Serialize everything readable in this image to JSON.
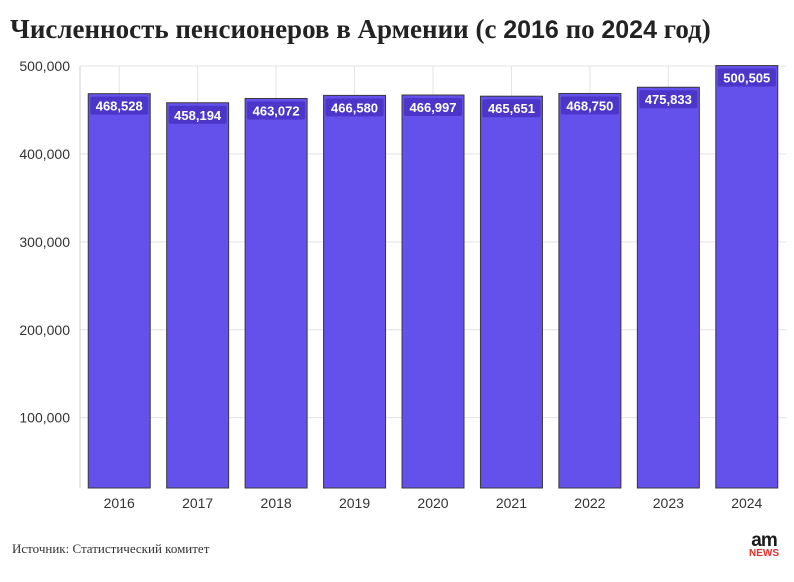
{
  "header": {
    "title_part1": "Численность пенсионеров в Армении (с ",
    "title_year1": "2016",
    "title_part2": " по ",
    "title_year2": "2024",
    "title_part3": " год)"
  },
  "footer": {
    "source": "Источник: Статистический комитет",
    "logo_main": "am",
    "logo_sub": "NEWS"
  },
  "colors": {
    "bar": "#6450ea",
    "bar_border": "#3a3a3a",
    "label_bg": "#4b36c9",
    "grid": "#e3e3e3",
    "axis_text": "#333333"
  },
  "chart_data": {
    "type": "bar",
    "categories": [
      "2016",
      "2017",
      "2018",
      "2019",
      "2020",
      "2021",
      "2022",
      "2023",
      "2024"
    ],
    "values": [
      468528,
      458194,
      463072,
      466580,
      466997,
      465651,
      468750,
      475833,
      500505
    ],
    "value_labels": [
      "468,528",
      "458,194",
      "463,072",
      "466,580",
      "466,997",
      "465,651",
      "468,750",
      "475,833",
      "500,505"
    ],
    "y_ticks": [
      100000,
      200000,
      300000,
      400000,
      500000
    ],
    "y_tick_labels": [
      "100,000",
      "200,000",
      "300,000",
      "400,000",
      "500,000"
    ],
    "ylim": [
      20000,
      500000
    ],
    "grid": true,
    "xlabel": "",
    "ylabel": ""
  }
}
